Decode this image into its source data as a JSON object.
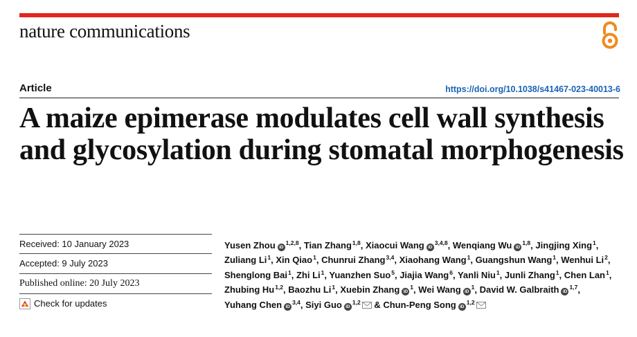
{
  "journal": {
    "name": "nature communications"
  },
  "article": {
    "type_label": "Article",
    "doi": "https://doi.org/10.1038/s41467-023-40013-6",
    "title": "A maize epimerase modulates cell wall synthesis and glycosylation during stomatal morphogenesis"
  },
  "dates": {
    "received": "Received: 10 January 2023",
    "accepted": "Accepted: 9 July 2023",
    "published": "Published online: 20 July 2023",
    "check_updates": "Check for updates"
  },
  "orcid_text": "iD",
  "authors": [
    {
      "name": "Yusen Zhou",
      "orcid": true,
      "aff": "1,2,8",
      "sep": ", "
    },
    {
      "name": "Tian Zhang",
      "orcid": false,
      "aff": "1,8",
      "sep": ", "
    },
    {
      "name": "Xiaocui Wang",
      "orcid": true,
      "aff": "3,4,8",
      "sep": ", "
    },
    {
      "name": "Wenqiang Wu",
      "orcid": true,
      "aff": "1,8",
      "sep": ", "
    },
    {
      "name": "Jingjing Xing",
      "orcid": false,
      "aff": "1",
      "sep": ", "
    },
    {
      "name": "Zuliang Li",
      "orcid": false,
      "aff": "1",
      "sep": ", "
    },
    {
      "name": "Xin Qiao",
      "orcid": false,
      "aff": "1",
      "sep": ", "
    },
    {
      "name": "Chunrui Zhang",
      "orcid": false,
      "aff": "3,4",
      "sep": ", "
    },
    {
      "name": "Xiaohang Wang",
      "orcid": false,
      "aff": "1",
      "sep": ", "
    },
    {
      "name": "Guangshun Wang",
      "orcid": false,
      "aff": "1",
      "sep": ", "
    },
    {
      "name": "Wenhui Li",
      "orcid": false,
      "aff": "2",
      "sep": ", "
    },
    {
      "name": "Shenglong Bai",
      "orcid": false,
      "aff": "1",
      "sep": ", "
    },
    {
      "name": "Zhi Li",
      "orcid": false,
      "aff": "1",
      "sep": ", "
    },
    {
      "name": "Yuanzhen Suo",
      "orcid": false,
      "aff": "5",
      "sep": ", "
    },
    {
      "name": "Jiajia Wang",
      "orcid": false,
      "aff": "6",
      "sep": ", "
    },
    {
      "name": "Yanli Niu",
      "orcid": false,
      "aff": "1",
      "sep": ", "
    },
    {
      "name": "Junli Zhang",
      "orcid": false,
      "aff": "1",
      "sep": ", "
    },
    {
      "name": "Chen Lan",
      "orcid": false,
      "aff": "1",
      "sep": ", "
    },
    {
      "name": "Zhubing Hu",
      "orcid": false,
      "aff": "1,2",
      "sep": ", "
    },
    {
      "name": "Baozhu Li",
      "orcid": false,
      "aff": "1",
      "sep": ", "
    },
    {
      "name": "Xuebin Zhang",
      "orcid": true,
      "aff": "1",
      "sep": ", "
    },
    {
      "name": "Wei Wang",
      "orcid": true,
      "aff": "1",
      "sep": ", "
    },
    {
      "name": "David W. Galbraith",
      "orcid": true,
      "aff": "1,7",
      "sep": ", "
    },
    {
      "name": "Yuhang Chen",
      "orcid": true,
      "aff": "3,4",
      "sep": ", "
    },
    {
      "name": "Siyi Guo",
      "orcid": true,
      "aff": "1,2",
      "mail": true,
      "sep": " & "
    },
    {
      "name": "Chun-Peng Song",
      "orcid": true,
      "aff": "1,2",
      "mail": true,
      "sep": ""
    }
  ],
  "colors": {
    "accent_bar": "#e2261d",
    "oa_icon": "#f08a1c",
    "doi_link": "#1a63b5"
  },
  "icons": {
    "open_access": "open-access-icon",
    "check_updates": "check-for-updates-icon",
    "orcid": "orcid-icon",
    "mail": "mail-icon"
  }
}
